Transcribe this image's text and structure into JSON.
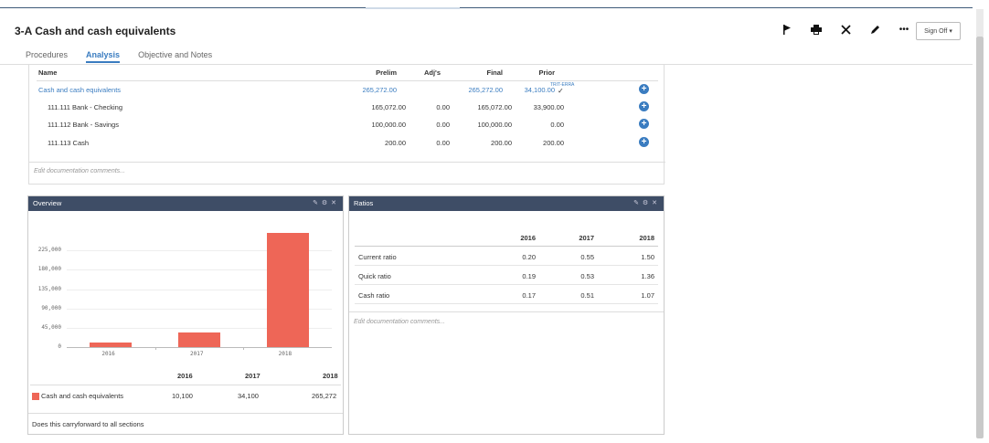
{
  "page": {
    "title": "3-A Cash and cash equivalents",
    "signoff_label": "Sign Off",
    "toolbar_icons": [
      "flag-icon",
      "print-icon",
      "tools-icon",
      "pencil-icon",
      "more-icon"
    ]
  },
  "tabs": [
    {
      "label": "Procedures",
      "active": false
    },
    {
      "label": "Analysis",
      "active": true
    },
    {
      "label": "Objective and Notes",
      "active": false
    }
  ],
  "table": {
    "headers": {
      "name": "Name",
      "prelim": "Prelim",
      "adj": "Adj's",
      "final": "Final",
      "prior": "Prior"
    },
    "rows": [
      {
        "name": "Cash and cash equivalents",
        "prelim": "265,272.00",
        "adj": "",
        "final": "265,272.00",
        "prior": "34,100.00",
        "tickmark": "TRIT-ERRA",
        "highlight": true
      },
      {
        "name": "111.111 Bank - Checking",
        "prelim": "165,072.00",
        "adj": "0.00",
        "final": "165,072.00",
        "prior": "33,900.00",
        "highlight": false
      },
      {
        "name": "111.112 Bank - Savings",
        "prelim": "100,000.00",
        "adj": "0.00",
        "final": "100,000.00",
        "prior": "0.00",
        "highlight": false
      },
      {
        "name": "111.113 Cash",
        "prelim": "200.00",
        "adj": "0.00",
        "final": "200.00",
        "prior": "200.00",
        "highlight": false
      }
    ],
    "doc_comment": "Edit documentation comments..."
  },
  "overview": {
    "title": "Overview",
    "summary_headers": [
      "2016",
      "2017",
      "2018"
    ],
    "series_label": "Cash and cash equivalents",
    "summary_values": [
      "10,100",
      "34,100",
      "265,272"
    ],
    "footer": "Does this carryforward to all sections"
  },
  "chart_data": {
    "type": "bar",
    "title": "",
    "categories": [
      "2016",
      "2017",
      "2018"
    ],
    "values": [
      10100,
      34100,
      265272
    ],
    "series": [
      {
        "name": "Cash and cash equivalents",
        "values": [
          10100,
          34100,
          265272
        ],
        "color": "#ee6657"
      }
    ],
    "ylim": [
      0,
      270000
    ],
    "yticks": [
      "0",
      "45,000",
      "90,000",
      "135,000",
      "180,000",
      "225,000"
    ],
    "ytick_values": [
      0,
      45000,
      90000,
      135000,
      180000,
      225000
    ],
    "grid": true
  },
  "ratios": {
    "title": "Ratios",
    "headers": [
      "2016",
      "2017",
      "2018"
    ],
    "rows": [
      {
        "label": "Current ratio",
        "values": [
          "0.20",
          "0.55",
          "1.50"
        ]
      },
      {
        "label": "Quick ratio",
        "values": [
          "0.19",
          "0.53",
          "1.36"
        ]
      },
      {
        "label": "Cash ratio",
        "values": [
          "0.17",
          "0.51",
          "1.07"
        ]
      }
    ],
    "doc_comment": "Edit documentation comments..."
  },
  "colors": {
    "accent": "#3a7cc0",
    "panel_header": "#3e4d66",
    "bar": "#ee6657"
  }
}
